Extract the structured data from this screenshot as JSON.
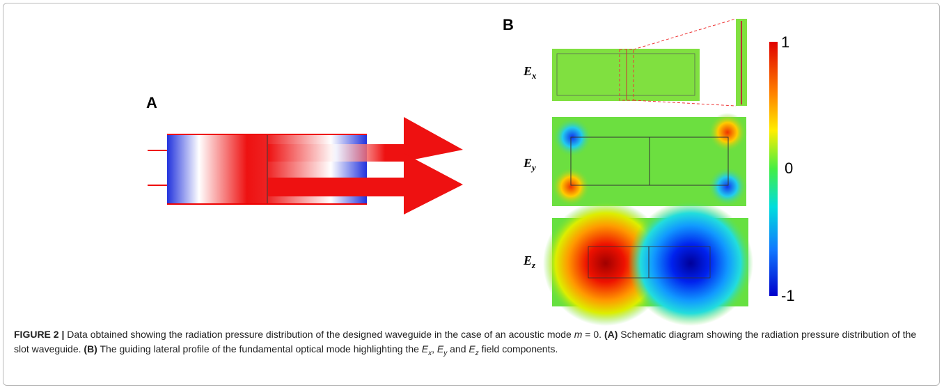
{
  "panels": {
    "a": {
      "label": "A"
    },
    "b": {
      "label": "B",
      "rows": [
        {
          "main": "E",
          "sub": "x"
        },
        {
          "main": "E",
          "sub": "y"
        },
        {
          "main": "E",
          "sub": "z"
        }
      ],
      "colorbar": [
        "1",
        "0",
        "-1"
      ]
    }
  },
  "caption": [
    "FIGURE 2 |",
    " Data obtained showing the radiation pressure distribution of the designed waveguide in the case of an acoustic mode ",
    "m",
    " = 0. ",
    "(A)",
    " Schematic diagram showing the radiation pressure distribution of the slot waveguide. ",
    "(B)",
    " The guiding lateral profile of the fundamental optical mode highlighting the ",
    "E",
    "x",
    ", ",
    "E",
    "y",
    " and ",
    "E",
    "z",
    " field components."
  ]
}
